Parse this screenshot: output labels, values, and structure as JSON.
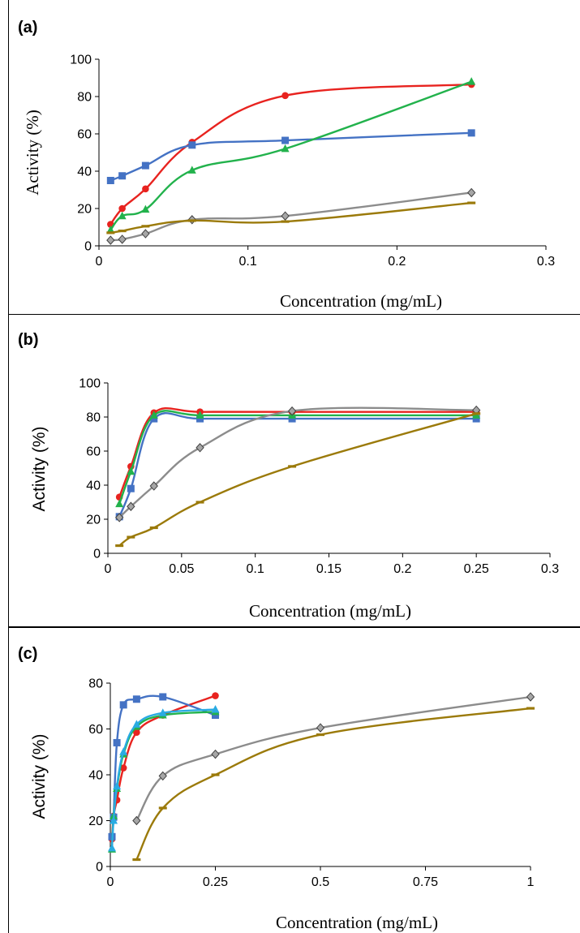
{
  "chart_data": [
    {
      "panel": "(a)",
      "type": "line",
      "xlabel": "Concentration (mg/mL)",
      "ylabel": "Activity  (%)",
      "xlim": [
        0,
        0.3
      ],
      "ylim": [
        0,
        100
      ],
      "xticks": [
        "0",
        "0.1",
        "0.2",
        "0.3"
      ],
      "yticks": [
        "0",
        "20",
        "40",
        "60",
        "80",
        "100"
      ],
      "grid": false,
      "legend": "none",
      "series": [
        {
          "color": "#e8231f",
          "marker": "circle",
          "x": [
            0.0078,
            0.0156,
            0.03125,
            0.0625,
            0.125,
            0.25
          ],
          "y": [
            11.5,
            20,
            30.5,
            55.5,
            80.5,
            86.5
          ]
        },
        {
          "color": "#4472c4",
          "marker": "square",
          "x": [
            0.0078,
            0.0156,
            0.03125,
            0.0625,
            0.125,
            0.25
          ],
          "y": [
            35,
            37.5,
            43,
            54,
            56.5,
            60.5
          ]
        },
        {
          "color": "#22b24c",
          "marker": "triangle",
          "x": [
            0.0078,
            0.0156,
            0.03125,
            0.0625,
            0.125,
            0.25
          ],
          "y": [
            8.5,
            16,
            19.5,
            40.5,
            52,
            88
          ]
        },
        {
          "color": "#8c8c8c",
          "marker": "diamond",
          "x": [
            0.0078,
            0.0156,
            0.03125,
            0.0625,
            0.125,
            0.25
          ],
          "y": [
            3,
            3.5,
            6.5,
            14,
            16,
            28.5
          ]
        },
        {
          "color": "#9b7a0a",
          "marker": "dash",
          "x": [
            0.0078,
            0.0156,
            0.03125,
            0.0625,
            0.125,
            0.25
          ],
          "y": [
            7,
            8,
            10.5,
            13.5,
            13,
            23
          ]
        }
      ]
    },
    {
      "panel": "(b)",
      "type": "line",
      "xlabel": "Concentration (mg/mL)",
      "ylabel": "Activity  (%)",
      "xlim": [
        0,
        0.3
      ],
      "ylim": [
        0,
        100
      ],
      "xticks": [
        "0",
        "0.05",
        "0.1",
        "0.15",
        "0.2",
        "0.25",
        "0.3"
      ],
      "yticks": [
        "0",
        "20",
        "40",
        "60",
        "80",
        "100"
      ],
      "grid": false,
      "legend": "none",
      "series": [
        {
          "color": "#e8231f",
          "marker": "circle",
          "x": [
            0.0078,
            0.0156,
            0.03125,
            0.0625,
            0.125,
            0.25
          ],
          "y": [
            33,
            51,
            82.5,
            83,
            83,
            83
          ]
        },
        {
          "color": "#4472c4",
          "marker": "square",
          "x": [
            0.0078,
            0.0156,
            0.03125,
            0.0625,
            0.125,
            0.25
          ],
          "y": [
            21.5,
            38,
            79,
            79,
            79,
            79
          ]
        },
        {
          "color": "#22b24c",
          "marker": "triangle",
          "x": [
            0.0078,
            0.0156,
            0.03125,
            0.0625,
            0.125,
            0.25
          ],
          "y": [
            29,
            48,
            81,
            81,
            81,
            81
          ]
        },
        {
          "color": "#8c8c8c",
          "marker": "diamond",
          "x": [
            0.0078,
            0.0156,
            0.03125,
            0.0625,
            0.125,
            0.25
          ],
          "y": [
            21,
            27.5,
            39.5,
            62,
            83.5,
            84
          ]
        },
        {
          "color": "#9b7a0a",
          "marker": "dash",
          "x": [
            0.0078,
            0.0156,
            0.03125,
            0.0625,
            0.125,
            0.25
          ],
          "y": [
            4.5,
            9.5,
            15,
            30,
            51,
            82
          ]
        }
      ]
    },
    {
      "panel": "(c)",
      "type": "line",
      "xlabel": "Concentration (mg/mL)",
      "ylabel": "Activity  (%)",
      "xlim": [
        0,
        1
      ],
      "ylim": [
        0,
        80
      ],
      "xticks": [
        "0",
        "0.25",
        "0.5",
        "0.75",
        "1"
      ],
      "yticks": [
        "0",
        "20",
        "40",
        "60",
        "80"
      ],
      "grid": false,
      "legend": "none",
      "series": [
        {
          "color": "#e8231f",
          "marker": "circle",
          "x": [
            0.0039,
            0.0078,
            0.0156,
            0.03125,
            0.0625,
            0.125,
            0.25
          ],
          "y": [
            12,
            22,
            29,
            43,
            58.5,
            66,
            74.5
          ]
        },
        {
          "color": "#4472c4",
          "marker": "square",
          "x": [
            0.0039,
            0.0078,
            0.0156,
            0.03125,
            0.0625,
            0.125,
            0.25
          ],
          "y": [
            13,
            21.5,
            54,
            70.5,
            73,
            74,
            66
          ]
        },
        {
          "color": "#22b24c",
          "marker": "triangle",
          "x": [
            0.0039,
            0.0078,
            0.0156,
            0.03125,
            0.0625,
            0.125,
            0.25
          ],
          "y": [
            7.5,
            22,
            34,
            49,
            61,
            66,
            67.5
          ]
        },
        {
          "color": "#29abe2",
          "marker": "triangle",
          "x": [
            0.0039,
            0.0078,
            0.0156,
            0.03125,
            0.0625,
            0.125,
            0.25
          ],
          "y": [
            8,
            20,
            35,
            50,
            62,
            67,
            68.5
          ]
        },
        {
          "color": "#8c8c8c",
          "marker": "diamond",
          "x": [
            0.0625,
            0.125,
            0.25,
            0.5,
            1
          ],
          "y": [
            20,
            39.5,
            49,
            60.5,
            74
          ]
        },
        {
          "color": "#9b7a0a",
          "marker": "dash",
          "x": [
            0.0625,
            0.125,
            0.25,
            0.5,
            1
          ],
          "y": [
            3,
            25.5,
            40,
            57.5,
            69
          ]
        }
      ]
    }
  ]
}
